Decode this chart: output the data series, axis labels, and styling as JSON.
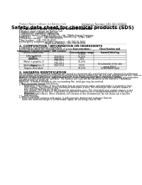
{
  "bg_color": "#ffffff",
  "header_left": "Product Name: Lithium Ion Battery Cell",
  "header_right_line1": "Substance Number: SDS-001-000010",
  "header_right_line2": "Establishment / Revision: Dec.7.2010",
  "title": "Safety data sheet for chemical products (SDS)",
  "section1_title": "1. PRODUCT AND COMPANY IDENTIFICATION",
  "section1_lines": [
    "・ Product name: Lithium Ion Battery Cell",
    "・ Product code: Cylindrical-type cell",
    "   ISR18650U, ISR18650J, ISR18650A",
    "・ Company name:    Sanyo Electric Co., Ltd., Mobile Energy Company",
    "・ Address:          2001, Kamionakamura, Sumoto-City, Hyogo, Japan",
    "・ Telephone number:   +81-799-24-4111",
    "・ Fax number:   +81-799-26-4120",
    "・ Emergency telephone number (daytime): +81-799-26-2662",
    "                                    (Night and holiday): +81-799-26-4101"
  ],
  "section2_title": "2. COMPOSITION / INFORMATION ON INGREDIENTS",
  "section2_intro": "・ Substance or preparation: Preparation",
  "section2_sub": "・ Information about the chemical nature of product:",
  "table_headers": [
    "Component (chemical name)",
    "CAS number",
    "Concentration /\nConcentration range",
    "Classification and\nhazard labeling"
  ],
  "table_rows": [
    [
      "Lithium cobalt oxide\n(LiMn/Co/Ni/O4)",
      "-",
      "30-60%",
      "-"
    ],
    [
      "Iron",
      "7439-89-6",
      "15-25%",
      "-"
    ],
    [
      "Aluminum",
      "7429-90-5",
      "2-5%",
      "-"
    ],
    [
      "Graphite\n(Metal in graphite-1)\n(Artificial graphite-1)",
      "7782-42-5\n7782-44-2",
      "10-25%",
      "-"
    ],
    [
      "Copper",
      "7440-50-8",
      "5-15%",
      "Sensitization of the skin\ngroup R42.2"
    ],
    [
      "Organic electrolyte",
      "-",
      "10-20%",
      "Inflammable liquid"
    ]
  ],
  "section3_title": "3. HAZARDS IDENTIFICATION",
  "section3_body": [
    "For the battery cell, chemical materials are stored in a hermetically sealed metal case, designed to withstand",
    "temperatures and pressures/electrochemical reactions during normal use. As a result, during normal use, there is no",
    "physical danger of ignition or explosion and there is no danger of hazardous materials leakage.",
    "However, if exposed to a fire, added mechanical shocks, decomposed, when electrolyte without any measures,",
    "the gas release vent will be operated. The battery cell case will be breached at the extreme. Hazardous",
    "materials may be released.",
    "Moreover, if heated strongly by the surrounding fire, solid gas may be emitted."
  ],
  "section3_bullet1": "・ Most important hazard and effects:",
  "section3_human": "Human health effects:",
  "section3_human_lines": [
    "Inhalation: The release of the electrolyte has an anesthesia action and stimulates a respiratory tract.",
    "Skin contact: The release of the electrolyte stimulates a skin. The electrolyte skin contact causes a",
    "sore and stimulation on the skin.",
    "Eye contact: The release of the electrolyte stimulates eyes. The electrolyte eye contact causes a sore",
    "and stimulation on the eye. Especially, a substance that causes a strong inflammation of the eyes is",
    "contained.",
    "Environmental effects: Since a battery cell remains in the environment, do not throw out it into the",
    "environment."
  ],
  "section3_bullet2": "・ Specific hazards:",
  "section3_specific": [
    "If the electrolyte contacts with water, it will generate detrimental hydrogen fluoride.",
    "Since the used electrolyte is inflammable liquid, do not bring close to fire."
  ]
}
